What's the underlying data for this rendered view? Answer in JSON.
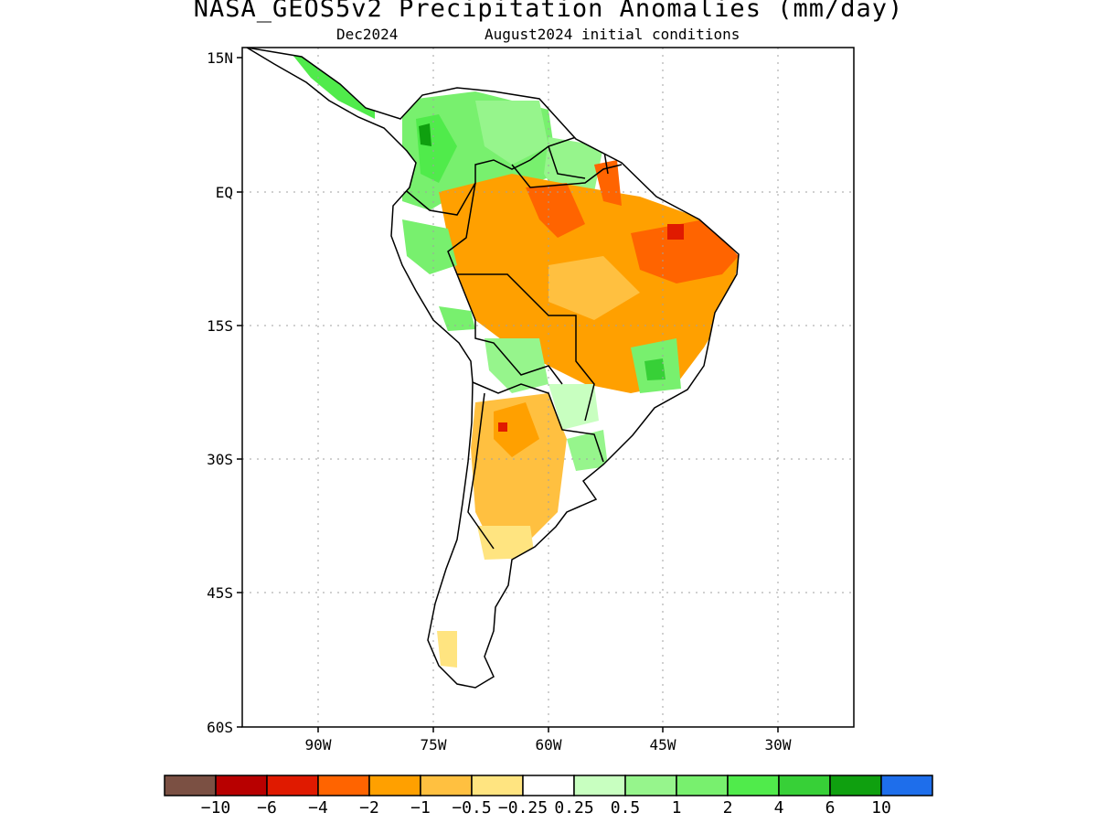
{
  "title": "NASA_GEOS5v2 Precipitation Anomalies (mm/day)",
  "subtitle_left": "Dec2024",
  "subtitle_right": "August2024 initial conditions",
  "lat_labels": [
    "15N",
    "EQ",
    "15S",
    "30S",
    "45S",
    "60S"
  ],
  "lon_labels": [
    "90W",
    "75W",
    "60W",
    "45W",
    "30W"
  ],
  "colorbar": {
    "colors": [
      "#7b5043",
      "#b80000",
      "#e01a00",
      "#ff6400",
      "#ffa000",
      "#ffc040",
      "#ffe480",
      "#ffffff",
      "#c8ffc0",
      "#96f58c",
      "#78f06e",
      "#50eb4b",
      "#37d037",
      "#0fa00f",
      "#1e6eeb"
    ],
    "labels": [
      "−10",
      "−6",
      "−4",
      "−2",
      "−1",
      "−0.5",
      "−0.25",
      "0.25",
      "0.5",
      "1",
      "2",
      "4",
      "6",
      "10"
    ]
  },
  "palette": {
    "dry_strong": "#e01a00",
    "dry_mod": "#ff6400",
    "dry": "#ffa000",
    "dry_light": "#ffc040",
    "dry_weak": "#ffe480",
    "wet_weak": "#c8ffc0",
    "wet_light": "#96f58c",
    "wet": "#78f06e",
    "wet_mod": "#50eb4b",
    "wet_strong": "#37d037",
    "wet_max": "#0fa00f"
  }
}
